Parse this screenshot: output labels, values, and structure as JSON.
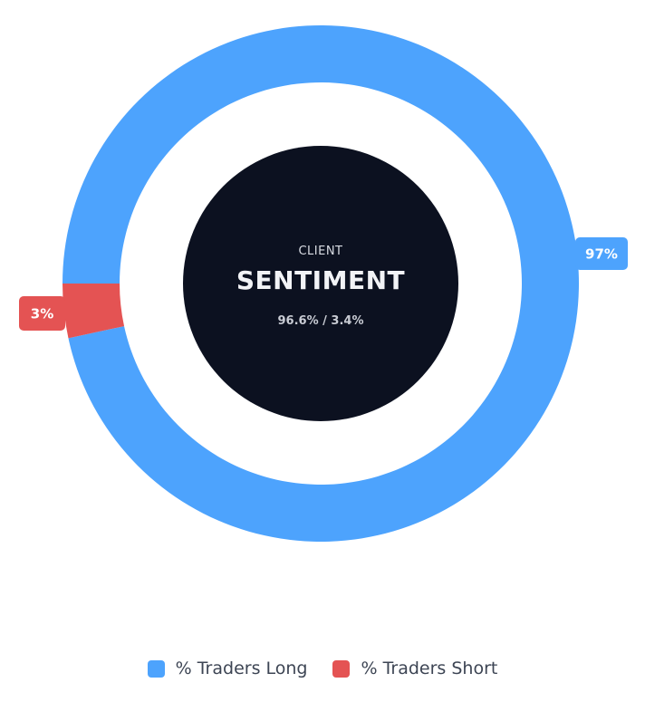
{
  "chart_data": {
    "type": "pie",
    "categories": [
      "% Traders Long",
      "% Traders Short"
    ],
    "values": [
      96.6,
      3.4
    ],
    "colors": [
      "#4da3fd",
      "#e45353"
    ],
    "data_labels": [
      "97%",
      "3%"
    ],
    "center": {
      "small_label": "CLIENT",
      "title": "SENTIMENT",
      "subtitle": "96.6% / 3.4%",
      "fill_color": "#0c1120"
    },
    "legend_position": "bottom"
  },
  "legend": {
    "items": [
      {
        "label": "% Traders Long",
        "color": "#4da3fd"
      },
      {
        "label": "% Traders Short",
        "color": "#e45353"
      }
    ]
  }
}
